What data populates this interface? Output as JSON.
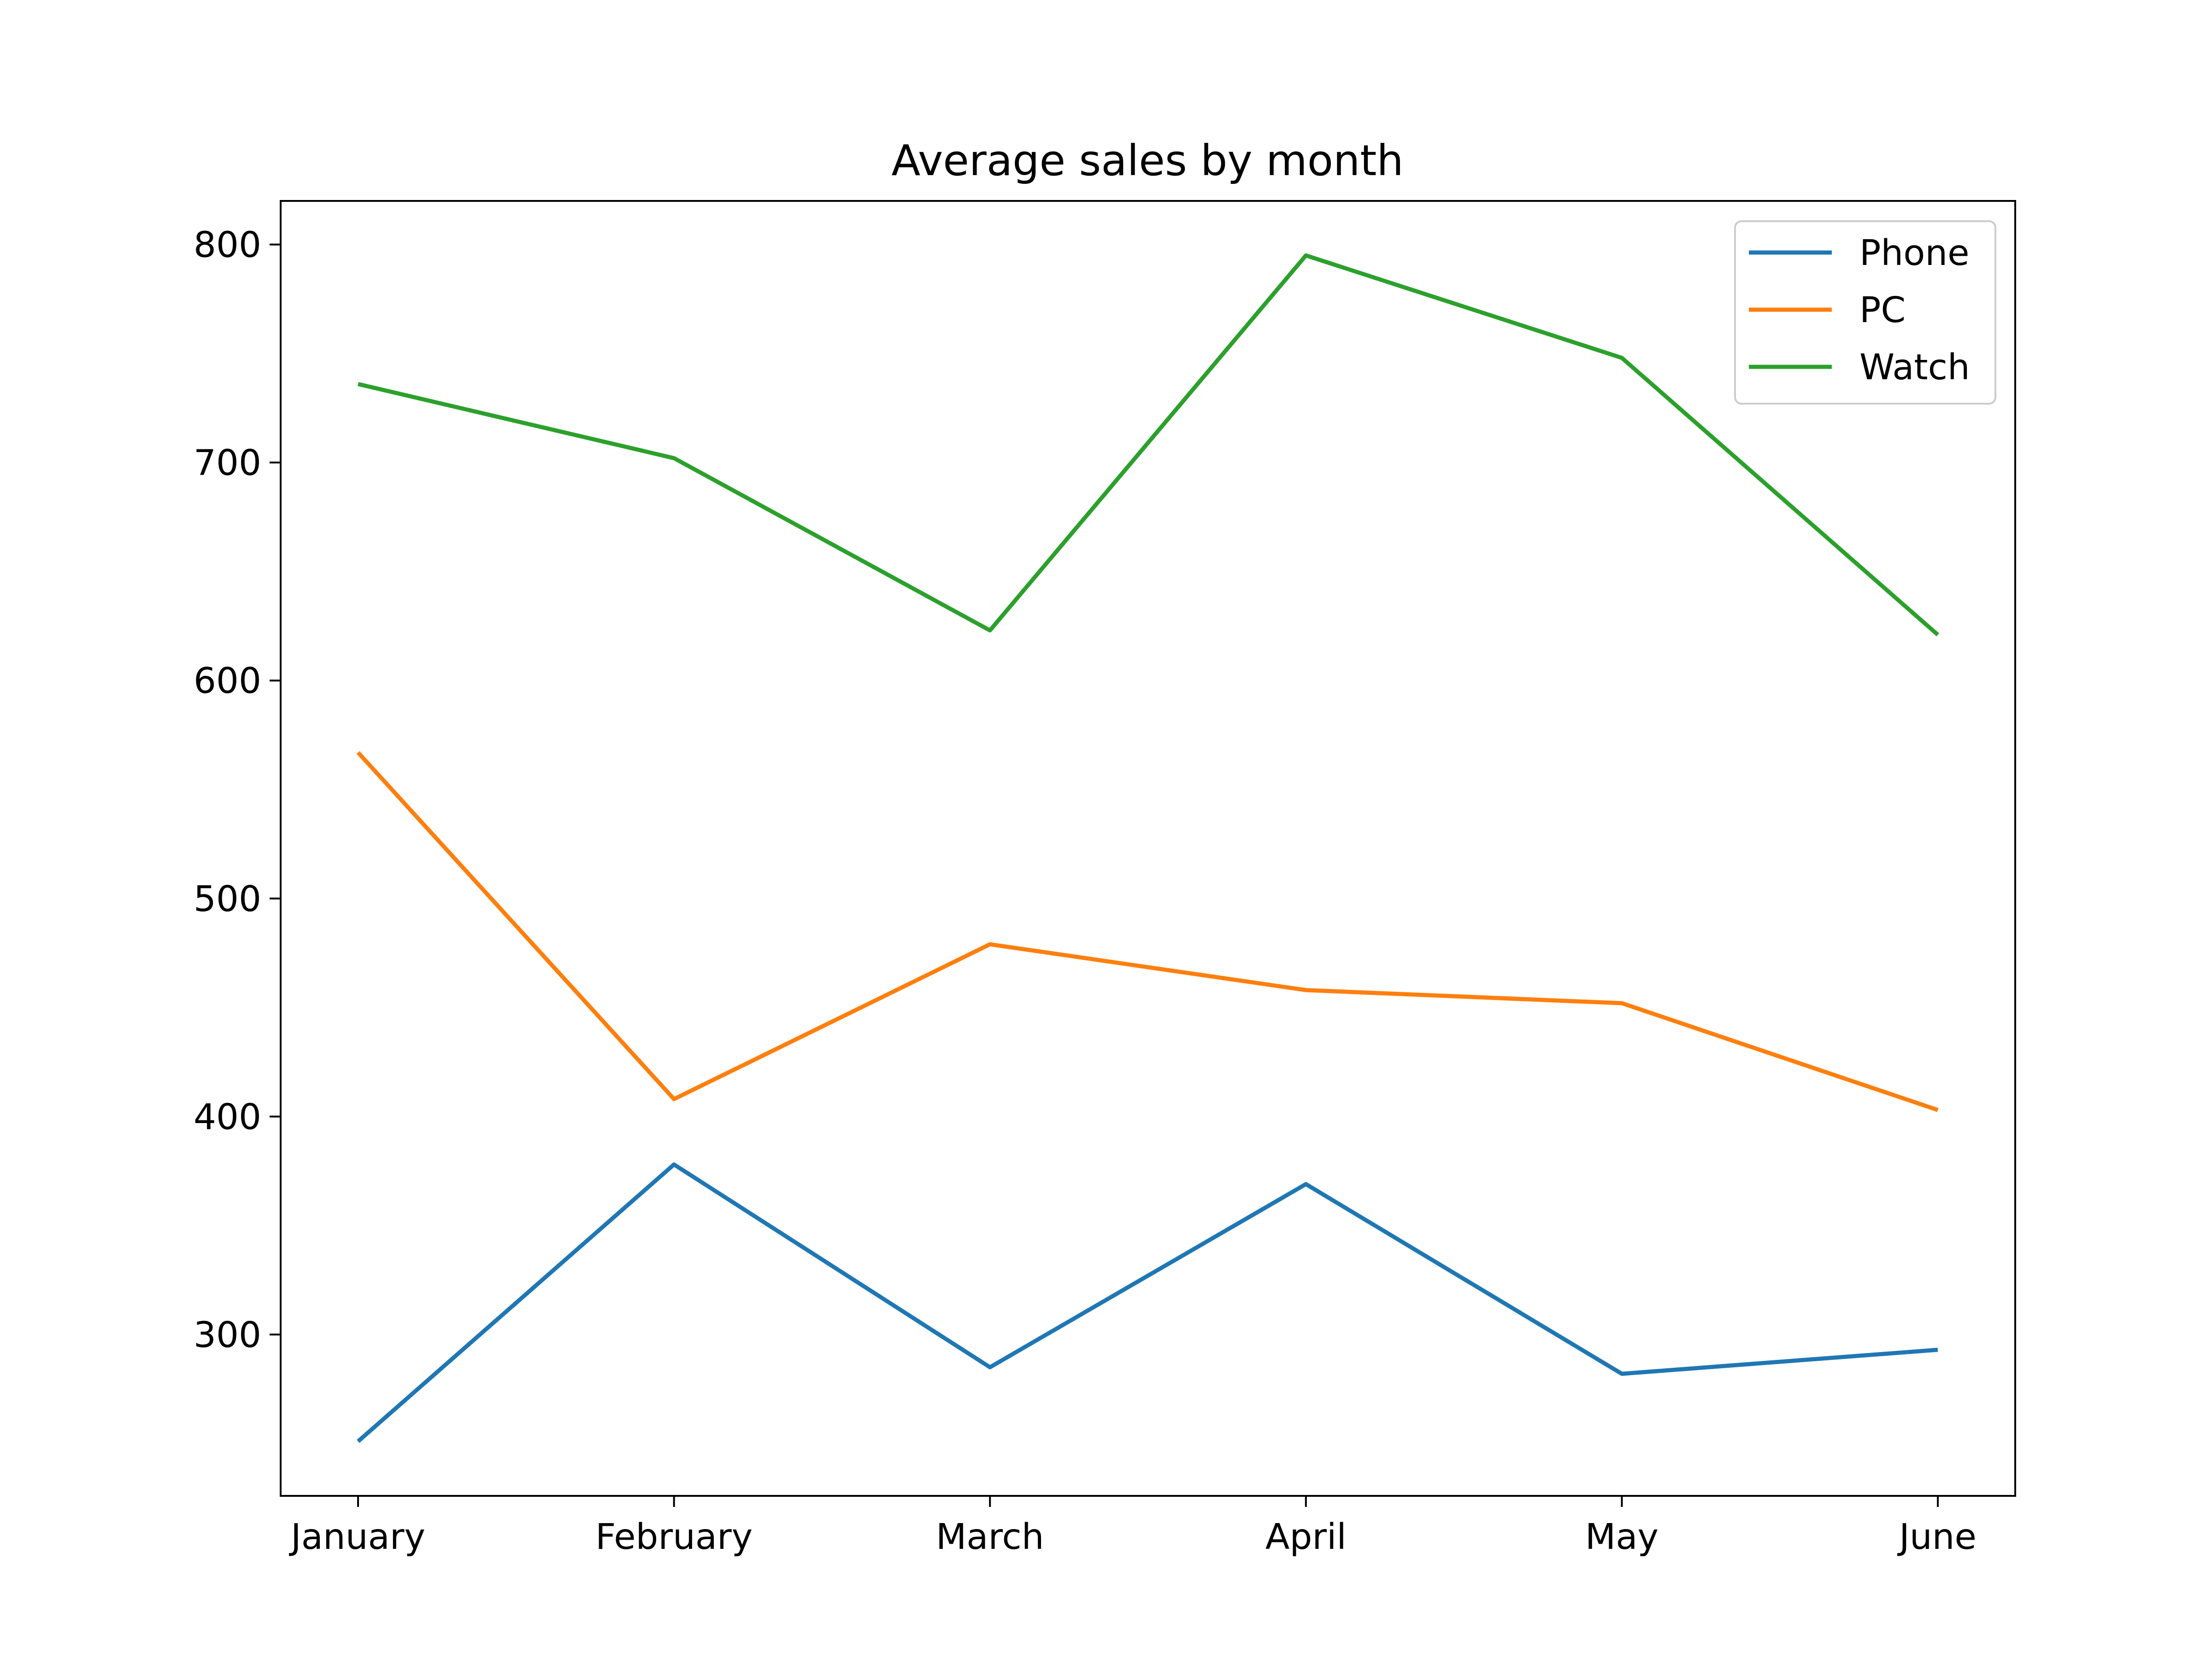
{
  "chart_data": {
    "type": "line",
    "title": "Average sales by month",
    "xlabel": "",
    "ylabel": "",
    "categories": [
      "January",
      "February",
      "March",
      "April",
      "May",
      "June"
    ],
    "series": [
      {
        "name": "Phone",
        "color": "#1f77b4",
        "values": [
          251,
          378,
          285,
          369,
          282,
          293
        ]
      },
      {
        "name": "PC",
        "color": "#ff7f0e",
        "values": [
          567,
          408,
          479,
          458,
          452,
          403
        ]
      },
      {
        "name": "Watch",
        "color": "#2ca02c",
        "values": [
          736,
          702,
          623,
          795,
          748,
          621
        ]
      }
    ],
    "yticks": [
      300,
      400,
      500,
      600,
      700,
      800
    ],
    "ylim": [
      226,
      820
    ],
    "grid": false,
    "legend_position": "top-right"
  }
}
